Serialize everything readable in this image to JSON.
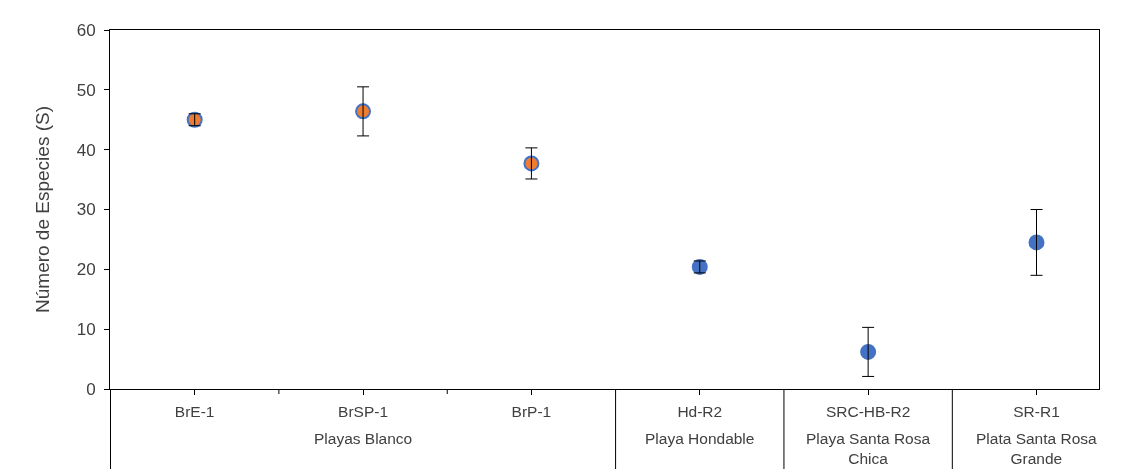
{
  "chart_data": {
    "type": "scatter",
    "categories": [
      "BrE-1",
      "BrSP-1",
      "BrP-1",
      "Hd-R2",
      "SRC-HB-R2",
      "SR-R1"
    ],
    "ylabel": "Número de Especies (S)",
    "ylim": [
      0,
      60
    ],
    "yticks": [
      0,
      10,
      20,
      30,
      40,
      50,
      60
    ],
    "marker": "circle",
    "series": [
      {
        "color": "#ed7d31",
        "values": [
          45,
          46.4,
          37.7,
          null,
          null,
          null
        ],
        "errors": [
          1,
          4.1,
          2.6,
          null,
          null,
          null
        ]
      },
      {
        "color": "#4472c4",
        "values": [
          null,
          null,
          null,
          20.4,
          null,
          null
        ],
        "errors": [
          null,
          null,
          null,
          1,
          null,
          null
        ]
      },
      {
        "color": "#4472c4",
        "values": [
          null,
          null,
          null,
          null,
          6.2,
          null
        ],
        "errors": [
          null,
          null,
          null,
          null,
          4.1,
          null
        ]
      },
      {
        "color": "#4472c4",
        "values": [
          null,
          null,
          null,
          null,
          null,
          24.5
        ],
        "errors": [
          null,
          null,
          null,
          null,
          null,
          5.5
        ]
      }
    ],
    "annotations": [
      "Playas Blanco",
      "Playa Hondable",
      "Playa Santa Rosa Chica",
      "Plata Santa Rosa Grande"
    ]
  }
}
